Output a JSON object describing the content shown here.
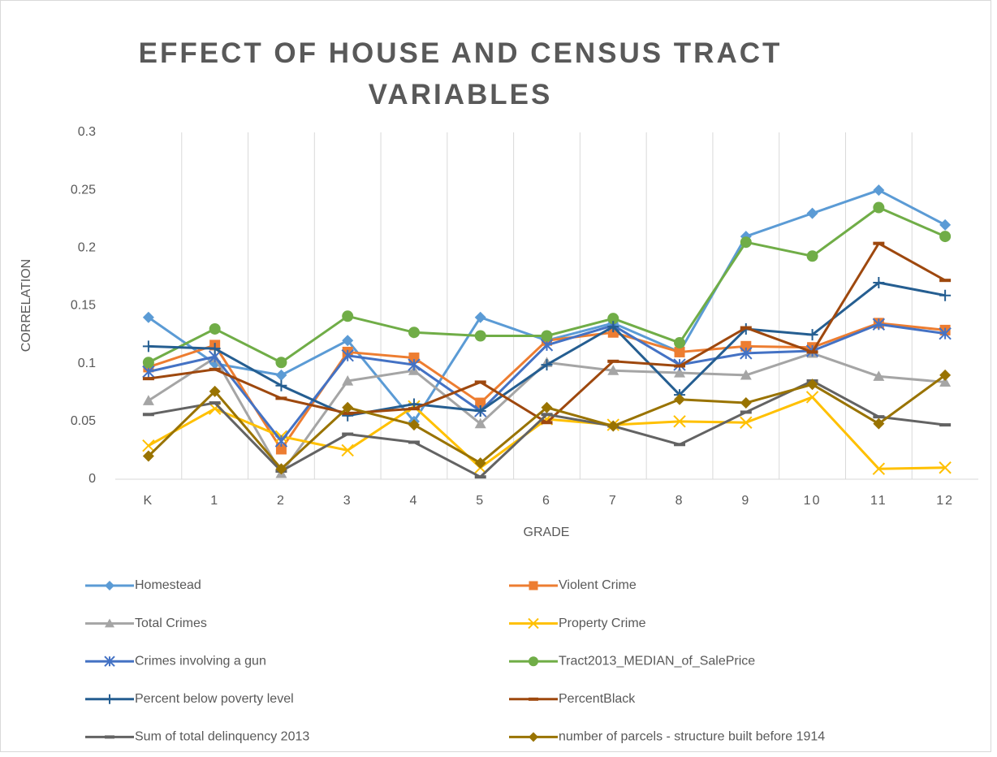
{
  "chart_data": {
    "type": "line",
    "title": "EFFECT OF HOUSE AND CENSUS TRACT VARIABLES",
    "x_label": "GRADE",
    "y_label": "CORRELATION",
    "categories": [
      "K",
      "1",
      "2",
      "3",
      "4",
      "5",
      "6",
      "7",
      "8",
      "9",
      "10",
      "11",
      "12"
    ],
    "ylim": [
      0,
      0.3
    ],
    "yticks": [
      0,
      0.05,
      0.1,
      0.15,
      0.2,
      0.25,
      0.3
    ],
    "vertical_grid": true,
    "legend": "bottom",
    "series": [
      {
        "name": "Homestead",
        "color": "#5b9bd5",
        "marker": "diamond",
        "values": [
          0.14,
          0.1,
          0.09,
          0.12,
          0.05,
          0.14,
          0.12,
          0.135,
          0.11,
          0.21,
          0.23,
          0.25,
          0.22
        ]
      },
      {
        "name": "Violent Crime",
        "color": "#ed7d31",
        "marker": "square",
        "values": [
          0.097,
          0.116,
          0.026,
          0.11,
          0.105,
          0.066,
          0.12,
          0.127,
          0.11,
          0.115,
          0.114,
          0.135,
          0.129
        ]
      },
      {
        "name": "Total Crimes",
        "color": "#a5a5a5",
        "marker": "triangle",
        "values": [
          0.068,
          0.105,
          0.005,
          0.085,
          0.094,
          0.048,
          0.101,
          0.094,
          0.092,
          0.09,
          0.109,
          0.089,
          0.084
        ]
      },
      {
        "name": "Property Crime",
        "color": "#ffc000",
        "marker": "x",
        "values": [
          0.029,
          0.061,
          0.037,
          0.025,
          0.063,
          0.01,
          0.052,
          0.047,
          0.05,
          0.049,
          0.071,
          0.009,
          0.01
        ]
      },
      {
        "name": "Crimes involving a gun",
        "color": "#4472c4",
        "marker": "star",
        "values": [
          0.093,
          0.106,
          0.033,
          0.107,
          0.099,
          0.059,
          0.116,
          0.133,
          0.099,
          0.109,
          0.111,
          0.134,
          0.126
        ]
      },
      {
        "name": "Tract2013_MEDIAN_of_SalePrice",
        "color": "#70ad47",
        "marker": "circle",
        "values": [
          0.101,
          0.13,
          0.101,
          0.141,
          0.127,
          0.124,
          0.124,
          0.139,
          0.118,
          0.205,
          0.193,
          0.235,
          0.21
        ]
      },
      {
        "name": "Percent below poverty level",
        "color": "#255e91",
        "marker": "plus",
        "values": [
          0.115,
          0.113,
          0.081,
          0.055,
          0.065,
          0.059,
          0.099,
          0.132,
          0.073,
          0.13,
          0.125,
          0.17,
          0.159
        ]
      },
      {
        "name": "PercentBlack",
        "color": "#9e480e",
        "marker": "dash",
        "values": [
          0.087,
          0.095,
          0.07,
          0.057,
          0.061,
          0.084,
          0.049,
          0.102,
          0.098,
          0.131,
          0.11,
          0.204,
          0.172
        ]
      },
      {
        "name": "Sum of total delinquency  2013",
        "color": "#636363",
        "marker": "dash",
        "values": [
          0.056,
          0.066,
          0.007,
          0.039,
          0.032,
          0.002,
          0.056,
          0.046,
          0.03,
          0.058,
          0.085,
          0.054,
          0.047
        ]
      },
      {
        "name": "number of parcels - structure built before 1914",
        "color": "#997300",
        "marker": "diamond",
        "values": [
          0.02,
          0.076,
          0.009,
          0.062,
          0.047,
          0.014,
          0.062,
          0.046,
          0.069,
          0.066,
          0.082,
          0.048,
          0.09
        ]
      }
    ]
  }
}
